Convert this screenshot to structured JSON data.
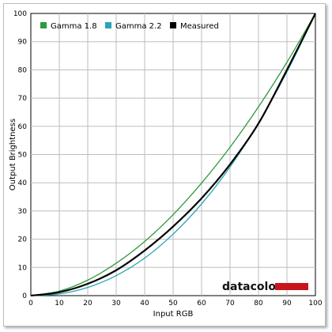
{
  "chart_data": {
    "type": "line",
    "title": "",
    "xlabel": "Input RGB",
    "ylabel": "Output Brightness",
    "xlim": [
      0,
      100
    ],
    "ylim": [
      0,
      100
    ],
    "xticks": [
      0,
      10,
      20,
      30,
      40,
      50,
      60,
      70,
      80,
      90,
      100
    ],
    "yticks": [
      0,
      10,
      20,
      30,
      40,
      50,
      60,
      70,
      80,
      90,
      100
    ],
    "grid": true,
    "legend_position": "top",
    "x": [
      0,
      10,
      20,
      30,
      40,
      50,
      60,
      70,
      80,
      90,
      100
    ],
    "series": [
      {
        "name": "Gamma 1.8",
        "color": "#2e9a3c",
        "values": [
          0,
          1.6,
          5.5,
          11.5,
          19.2,
          28.7,
          39.9,
          52.6,
          66.9,
          82.7,
          100
        ]
      },
      {
        "name": "Gamma 2.2",
        "color": "#2aa3b5",
        "values": [
          0,
          0.6,
          2.9,
          7.1,
          13.3,
          21.8,
          32.5,
          45.6,
          61.2,
          79.3,
          100
        ]
      },
      {
        "name": "Measured",
        "color": "#000000",
        "values": [
          0,
          1.2,
          4.2,
          9.0,
          16.0,
          24.5,
          34.5,
          46.5,
          61.0,
          80.0,
          100
        ]
      }
    ]
  },
  "brand": {
    "name": "datacolor",
    "accent_color": "#c8151b"
  }
}
